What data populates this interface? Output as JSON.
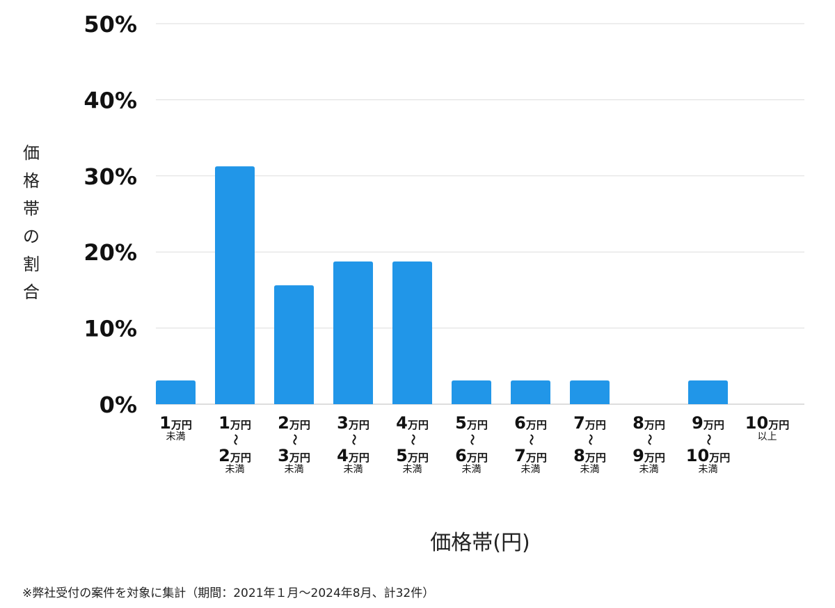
{
  "chart_data": {
    "type": "bar",
    "xlabel": "価格帯(円)",
    "ylabel": "価格帯の割合",
    "ylim": [
      0,
      50
    ],
    "yticks": [
      "0%",
      "10%",
      "20%",
      "30%",
      "40%",
      "50%"
    ],
    "ytick_values": [
      0,
      10,
      20,
      30,
      40,
      50
    ],
    "grid": true,
    "bar_color": "#2196e8",
    "categories": [
      {
        "from": "1",
        "unit": "万円",
        "suffix": "未満"
      },
      {
        "from": "1",
        "sep": "〜",
        "to": "2",
        "unit": "万円",
        "suffix": "未満"
      },
      {
        "from": "2",
        "sep": "〜",
        "to": "3",
        "unit": "万円",
        "suffix": "未満"
      },
      {
        "from": "3",
        "sep": "〜",
        "to": "4",
        "unit": "万円",
        "suffix": "未満"
      },
      {
        "from": "4",
        "sep": "〜",
        "to": "5",
        "unit": "万円",
        "suffix": "未満"
      },
      {
        "from": "5",
        "sep": "〜",
        "to": "6",
        "unit": "万円",
        "suffix": "未満"
      },
      {
        "from": "6",
        "sep": "〜",
        "to": "7",
        "unit": "万円",
        "suffix": "未満"
      },
      {
        "from": "7",
        "sep": "〜",
        "to": "8",
        "unit": "万円",
        "suffix": "未満"
      },
      {
        "from": "8",
        "sep": "〜",
        "to": "9",
        "unit": "万円",
        "suffix": "未満"
      },
      {
        "from": "9",
        "sep": "〜",
        "to": "10",
        "unit": "万円",
        "suffix": "未満"
      },
      {
        "from": "10",
        "unit": "万円",
        "suffix": "以上"
      }
    ],
    "values": [
      3.125,
      31.25,
      15.625,
      18.75,
      18.75,
      3.125,
      3.125,
      3.125,
      0,
      3.125,
      0
    ]
  },
  "note": "※弊社受付の案件を対象に集計（期間：2021年１月〜2024年8月、計32件）"
}
